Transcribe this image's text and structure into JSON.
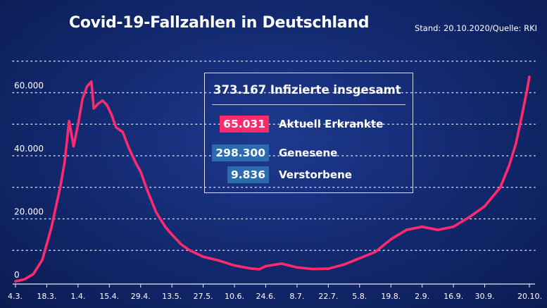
{
  "title": "Covid-19-Fallzahlen in Deutschland",
  "source": "Stand: 20.10.2020/Quelle: RKI",
  "colors": {
    "background": "#142b73",
    "line": "#ff2a6d",
    "active_badge": "#ff2a6d",
    "recovered_badge": "#2b6cb0",
    "deaths_badge": "#2b6cb0",
    "gridline": "#c9d1ea"
  },
  "stats": {
    "total": "373.167 Infizierte insgesamt",
    "rows": [
      {
        "value": "65.031",
        "label": "Aktuell Erkrankte",
        "badge_color": "#ff2a6d"
      },
      {
        "value": "298.300",
        "label": "Genesene",
        "badge_color": "#2b6cb0"
      },
      {
        "value": "9.836",
        "label": "Verstorbene",
        "badge_color": "#2b6cb0"
      }
    ]
  },
  "chart_data": {
    "type": "line",
    "title": "Covid-19-Fallzahlen in Deutschland",
    "xlabel": "",
    "ylabel": "",
    "ylim": [
      0,
      65000
    ],
    "yticks": [
      {
        "value": 0,
        "label": "0"
      },
      {
        "value": 20000,
        "label": "20.000"
      },
      {
        "value": 40000,
        "label": "40.000"
      },
      {
        "value": 60000,
        "label": "60.000"
      }
    ],
    "grid": true,
    "xticks": [
      "4.3.",
      "18.3.",
      "1.4.",
      "15.4.",
      "29.4.",
      "13.5.",
      "27.5.",
      "10.6.",
      "24.6.",
      "8.7.",
      "22.7.",
      "5.8.",
      "19.8.",
      "2.9.",
      "16.9.",
      "30.9.",
      "20.10."
    ],
    "series": [
      {
        "points": [
          [
            "4.3.",
            200
          ],
          [
            "8.3.",
            800
          ],
          [
            "12.3.",
            2500
          ],
          [
            "16.3.",
            7000
          ],
          [
            "20.3.",
            17000
          ],
          [
            "24.3.",
            30000
          ],
          [
            "26.3.",
            38000
          ],
          [
            "28.3.",
            51000
          ],
          [
            "30.3.",
            43000
          ],
          [
            "1.4.",
            50000
          ],
          [
            "3.4.",
            58000
          ],
          [
            "5.4.",
            62000
          ],
          [
            "7.4.",
            63500
          ],
          [
            "8.4.",
            55000
          ],
          [
            "10.4.",
            56500
          ],
          [
            "12.4.",
            57500
          ],
          [
            "14.4.",
            56000
          ],
          [
            "16.4.",
            53000
          ],
          [
            "18.4.",
            49000
          ],
          [
            "21.4.",
            47500
          ],
          [
            "24.4.",
            42000
          ],
          [
            "27.4.",
            37500
          ],
          [
            "29.4.",
            35000
          ],
          [
            "2.5.",
            29000
          ],
          [
            "6.5.",
            22000
          ],
          [
            "10.5.",
            17500
          ],
          [
            "13.5.",
            15000
          ],
          [
            "17.5.",
            12000
          ],
          [
            "21.5.",
            10000
          ],
          [
            "27.5.",
            8000
          ],
          [
            "3.6.",
            6800
          ],
          [
            "10.6.",
            5200
          ],
          [
            "17.6.",
            4300
          ],
          [
            "21.6.",
            4000
          ],
          [
            "24.6.",
            5000
          ],
          [
            "1.7.",
            5800
          ],
          [
            "8.7.",
            4600
          ],
          [
            "15.7.",
            4100
          ],
          [
            "22.7.",
            4200
          ],
          [
            "29.7.",
            5500
          ],
          [
            "5.8.",
            7500
          ],
          [
            "12.8.",
            9500
          ],
          [
            "19.8.",
            13500
          ],
          [
            "26.8.",
            16500
          ],
          [
            "2.9.",
            17500
          ],
          [
            "9.9.",
            16500
          ],
          [
            "16.9.",
            17500
          ],
          [
            "23.9.",
            20500
          ],
          [
            "30.9.",
            24000
          ],
          [
            "7.10.",
            30000
          ],
          [
            "11.10.",
            37000
          ],
          [
            "14.10.",
            44000
          ],
          [
            "17.10.",
            54000
          ],
          [
            "19.10.",
            61000
          ],
          [
            "20.10.",
            65031
          ]
        ]
      }
    ]
  }
}
